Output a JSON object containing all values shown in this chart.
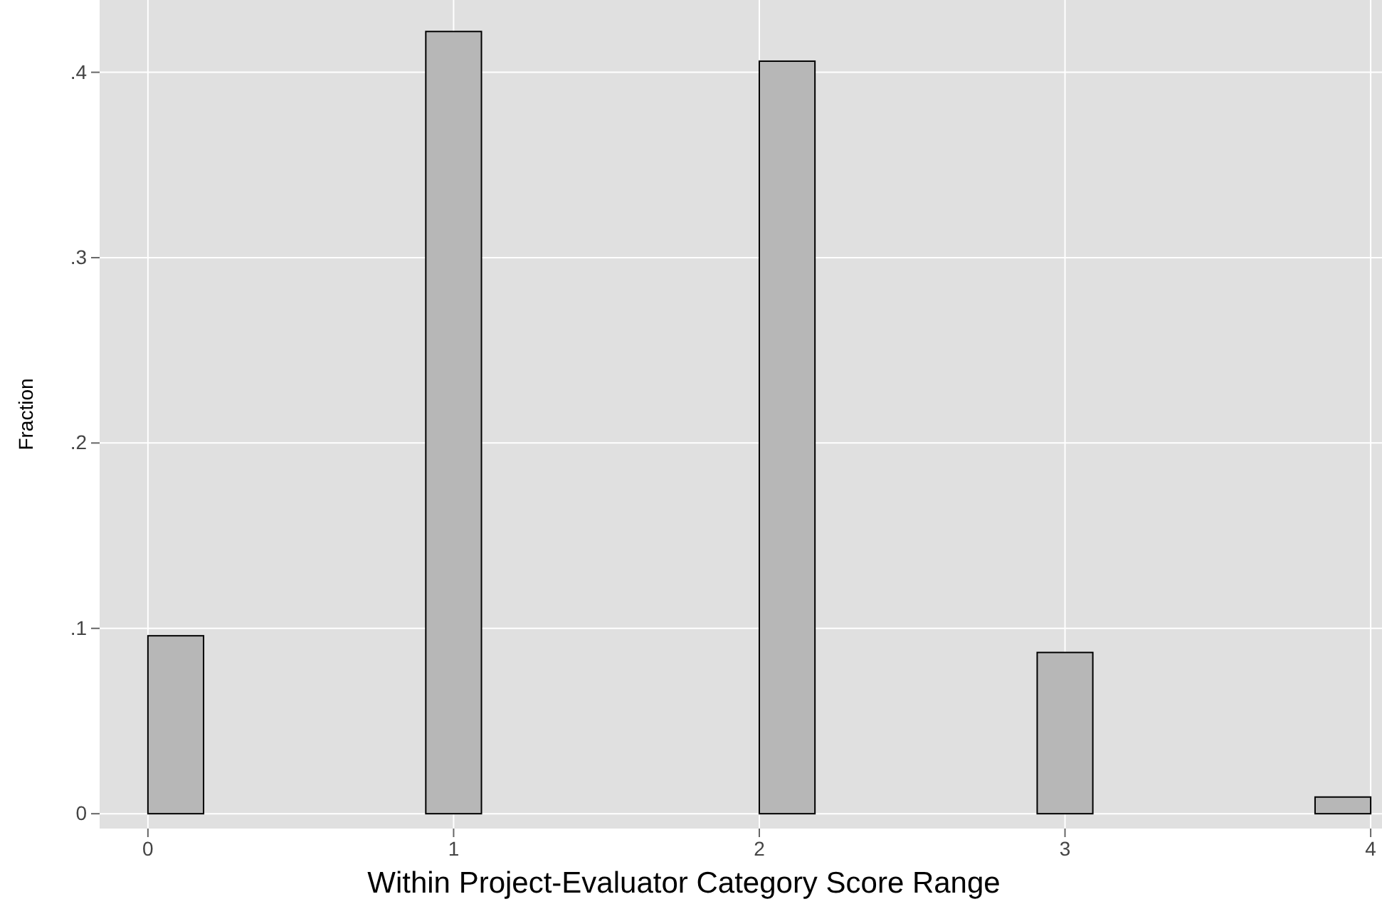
{
  "chart_data": {
    "type": "histogram",
    "xlabel": "Within Project-Evaluator Category Score Range",
    "ylabel": "Fraction",
    "bins": [
      0,
      0.182,
      0.364,
      0.545,
      0.727,
      0.909,
      1.091,
      1.273,
      1.455,
      1.636,
      1.818,
      2,
      2.182,
      2.364,
      2.545,
      2.727,
      2.909,
      3.091,
      3.273,
      3.455,
      3.636,
      3.818,
      4
    ],
    "values": [
      0.096,
      0,
      0,
      0,
      0,
      0.422,
      0,
      0,
      0,
      0,
      0,
      0.406,
      0,
      0,
      0,
      0,
      0.087,
      0,
      0,
      0,
      0,
      0.009
    ],
    "color": "#b7b7b7",
    "xlim": [
      -0.158,
      4.037
    ],
    "ylim": [
      -0.008,
      0.439
    ],
    "xticks": [
      0,
      1,
      2,
      3,
      4
    ],
    "yticks": [
      {
        "value": 0,
        "label": "0"
      },
      {
        "value": 0.1,
        "label": ".1"
      },
      {
        "value": 0.2,
        "label": ".2"
      },
      {
        "value": 0.3,
        "label": ".3"
      },
      {
        "value": 0.4,
        "label": ".4"
      }
    ],
    "grid": true
  }
}
